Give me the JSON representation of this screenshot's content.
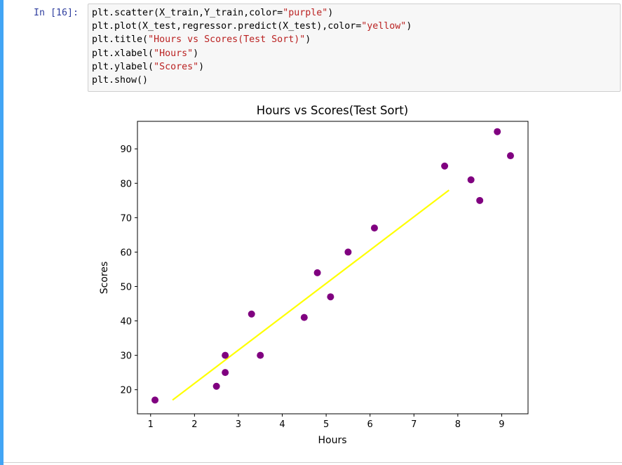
{
  "cell": {
    "prompt": "In [16]:",
    "code_lines": [
      {
        "pre": "plt.scatter(X_train,Y_train,color=",
        "str": "\"purple\"",
        "post": ")"
      },
      {
        "pre": "plt.plot(X_test,regressor.predict(X_test),color=",
        "str": "\"yellow\"",
        "post": ")"
      },
      {
        "pre": "plt.title(",
        "str": "\"Hours vs Scores(Test Sort)\"",
        "post": ")"
      },
      {
        "pre": "plt.xlabel(",
        "str": "\"Hours\"",
        "post": ")"
      },
      {
        "pre": "plt.ylabel(",
        "str": "\"Scores\"",
        "post": ")"
      },
      {
        "pre": "plt.show()",
        "str": "",
        "post": ""
      }
    ],
    "colors": {
      "prompt": "#303f9f",
      "string": "#ba2121",
      "cell_border": "#42a5f5"
    }
  },
  "chart_data": {
    "type": "scatter",
    "title": "Hours vs Scores(Test Sort)",
    "xlabel": "Hours",
    "ylabel": "Scores",
    "xlim": [
      0.7,
      9.6
    ],
    "ylim": [
      13,
      98
    ],
    "xticks": [
      1,
      2,
      3,
      4,
      5,
      6,
      7,
      8,
      9
    ],
    "yticks": [
      20,
      30,
      40,
      50,
      60,
      70,
      80,
      90
    ],
    "grid": false,
    "series": [
      {
        "kind": "scatter",
        "color": "#800080",
        "points": [
          [
            1.1,
            17
          ],
          [
            2.5,
            21
          ],
          [
            2.7,
            25
          ],
          [
            2.7,
            30
          ],
          [
            3.3,
            42
          ],
          [
            3.5,
            30
          ],
          [
            4.5,
            41
          ],
          [
            4.8,
            54
          ],
          [
            5.1,
            47
          ],
          [
            5.5,
            60
          ],
          [
            6.1,
            67
          ],
          [
            7.7,
            85
          ],
          [
            8.3,
            81
          ],
          [
            8.5,
            75
          ],
          [
            8.9,
            95
          ],
          [
            9.2,
            88
          ]
        ]
      },
      {
        "kind": "line",
        "color": "#ffff00",
        "points": [
          [
            1.5,
            17
          ],
          [
            7.8,
            78
          ]
        ]
      }
    ]
  }
}
